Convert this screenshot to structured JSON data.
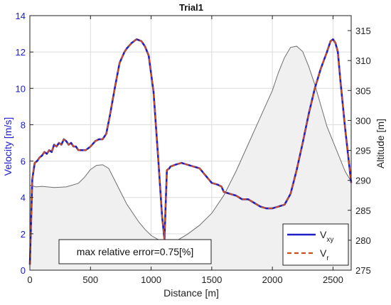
{
  "chart_data": {
    "type": "line",
    "title": "Trial1",
    "xlabel": "Distance [m]",
    "ylabel": "Velocity [m/s]",
    "y2label": "Altitude [m]",
    "xlim": [
      0,
      2650
    ],
    "ylim": [
      0,
      14
    ],
    "y2lim": [
      275,
      317.5
    ],
    "xticks": [
      "0",
      "500",
      "1000",
      "1500",
      "2000",
      "2500"
    ],
    "xtick_values": [
      0,
      500,
      1000,
      1500,
      2000,
      2500
    ],
    "yticks": [
      "0",
      "2",
      "4",
      "6",
      "8",
      "10",
      "12",
      "14"
    ],
    "ytick_values": [
      0,
      2,
      4,
      6,
      8,
      10,
      12,
      14
    ],
    "y2ticks": [
      "275",
      "280",
      "285",
      "290",
      "295",
      "300",
      "305",
      "310",
      "315"
    ],
    "y2tick_values": [
      275,
      280,
      285,
      290,
      295,
      300,
      305,
      310,
      315
    ],
    "grid": true,
    "legend_position": "bottom-right",
    "annotation": "max relative error=0.75[%]",
    "colors": {
      "vxy": "#1f1fc8",
      "vr": "#c8501e",
      "altitude_line": "#6e6e6e",
      "altitude_fill": "#f0f0f0",
      "left_axis": "#1a1ad0",
      "grid": "#dcdcdc"
    },
    "series": [
      {
        "name": "V",
        "subscript": "xy",
        "style": "solid",
        "axis": "left",
        "x": [
          0,
          20,
          40,
          60,
          80,
          100,
          120,
          140,
          160,
          180,
          200,
          220,
          240,
          260,
          280,
          300,
          320,
          340,
          360,
          380,
          400,
          430,
          460,
          500,
          540,
          570,
          600,
          630,
          660,
          700,
          740,
          780,
          800,
          840,
          880,
          920,
          950,
          980,
          1020,
          1060,
          1090,
          1110,
          1130,
          1150,
          1160,
          1200,
          1250,
          1300,
          1350,
          1400,
          1450,
          1500,
          1550,
          1580,
          1600,
          1650,
          1700,
          1750,
          1800,
          1850,
          1900,
          1950,
          2000,
          2050,
          2100,
          2150,
          2200,
          2250,
          2300,
          2350,
          2400,
          2450,
          2480,
          2500,
          2520,
          2540,
          2560,
          2600,
          2650
        ],
        "values": [
          0.3,
          5.0,
          5.9,
          6.0,
          6.2,
          6.3,
          6.5,
          6.4,
          6.6,
          6.5,
          6.9,
          6.8,
          7.0,
          6.9,
          7.2,
          7.1,
          6.9,
          7.0,
          6.8,
          6.8,
          6.6,
          6.6,
          6.6,
          6.8,
          7.1,
          7.2,
          7.2,
          7.5,
          8.5,
          10.0,
          11.4,
          12.0,
          12.2,
          12.5,
          12.7,
          12.6,
          12.3,
          11.8,
          9.8,
          6.0,
          3.0,
          1.7,
          5.5,
          5.6,
          5.7,
          5.8,
          5.9,
          5.8,
          5.7,
          5.6,
          5.2,
          4.8,
          4.7,
          4.6,
          4.3,
          4.2,
          4.1,
          3.9,
          3.9,
          3.7,
          3.5,
          3.4,
          3.4,
          3.5,
          3.6,
          4.2,
          5.5,
          7.0,
          8.6,
          10.0,
          11.1,
          12.0,
          12.6,
          12.7,
          12.5,
          12.0,
          10.5,
          7.8,
          4.8
        ]
      },
      {
        "name": "V",
        "subscript": "r",
        "style": "dashed",
        "axis": "left",
        "x": [
          0,
          20,
          40,
          60,
          80,
          100,
          120,
          140,
          160,
          180,
          200,
          220,
          240,
          260,
          280,
          300,
          320,
          340,
          360,
          380,
          400,
          430,
          460,
          500,
          540,
          570,
          600,
          630,
          660,
          700,
          740,
          780,
          800,
          840,
          880,
          920,
          950,
          980,
          1020,
          1060,
          1090,
          1110,
          1130,
          1150,
          1160,
          1200,
          1250,
          1300,
          1350,
          1400,
          1450,
          1500,
          1550,
          1580,
          1600,
          1650,
          1700,
          1750,
          1800,
          1850,
          1900,
          1950,
          2000,
          2050,
          2100,
          2150,
          2200,
          2250,
          2300,
          2350,
          2400,
          2450,
          2480,
          2500,
          2520,
          2540,
          2560,
          2600,
          2650
        ],
        "values": [
          0.3,
          5.0,
          5.9,
          6.0,
          6.2,
          6.3,
          6.5,
          6.4,
          6.6,
          6.5,
          6.9,
          6.8,
          7.0,
          6.9,
          7.2,
          7.1,
          6.9,
          7.0,
          6.8,
          6.8,
          6.6,
          6.6,
          6.6,
          6.8,
          7.1,
          7.2,
          7.2,
          7.5,
          8.5,
          10.0,
          11.4,
          12.0,
          12.2,
          12.5,
          12.7,
          12.6,
          12.3,
          11.8,
          9.8,
          6.0,
          3.0,
          1.7,
          5.5,
          5.6,
          5.7,
          5.8,
          5.9,
          5.8,
          5.7,
          5.6,
          5.2,
          4.8,
          4.7,
          4.6,
          4.3,
          4.2,
          4.1,
          3.9,
          3.9,
          3.7,
          3.5,
          3.4,
          3.4,
          3.5,
          3.6,
          4.2,
          5.5,
          7.0,
          8.6,
          10.0,
          11.1,
          12.0,
          12.6,
          12.7,
          12.5,
          12.0,
          10.5,
          7.8,
          4.8
        ]
      },
      {
        "name": "",
        "axis": "right",
        "style": "area",
        "x": [
          0,
          50,
          100,
          200,
          300,
          400,
          450,
          500,
          550,
          600,
          650,
          700,
          750,
          800,
          850,
          900,
          950,
          1000,
          1050,
          1100,
          1150,
          1200,
          1300,
          1400,
          1500,
          1600,
          1700,
          1800,
          1900,
          2000,
          2050,
          2100,
          2150,
          2200,
          2250,
          2300,
          2350,
          2400,
          2450,
          2500,
          2550,
          2600,
          2650
        ],
        "values": [
          289.2,
          288.9,
          289.0,
          288.8,
          288.9,
          289.5,
          290.5,
          291.8,
          292.5,
          292.6,
          292.0,
          290.0,
          288.0,
          286.0,
          284.5,
          283.0,
          281.8,
          280.8,
          280.2,
          279.8,
          279.6,
          279.8,
          281.0,
          282.5,
          284.5,
          287.5,
          291.5,
          296.0,
          300.5,
          305.0,
          308.0,
          310.5,
          312.2,
          312.4,
          311.5,
          309.0,
          306.0,
          302.5,
          299.0,
          296.5,
          294.0,
          291.5,
          289.8
        ]
      }
    ]
  }
}
